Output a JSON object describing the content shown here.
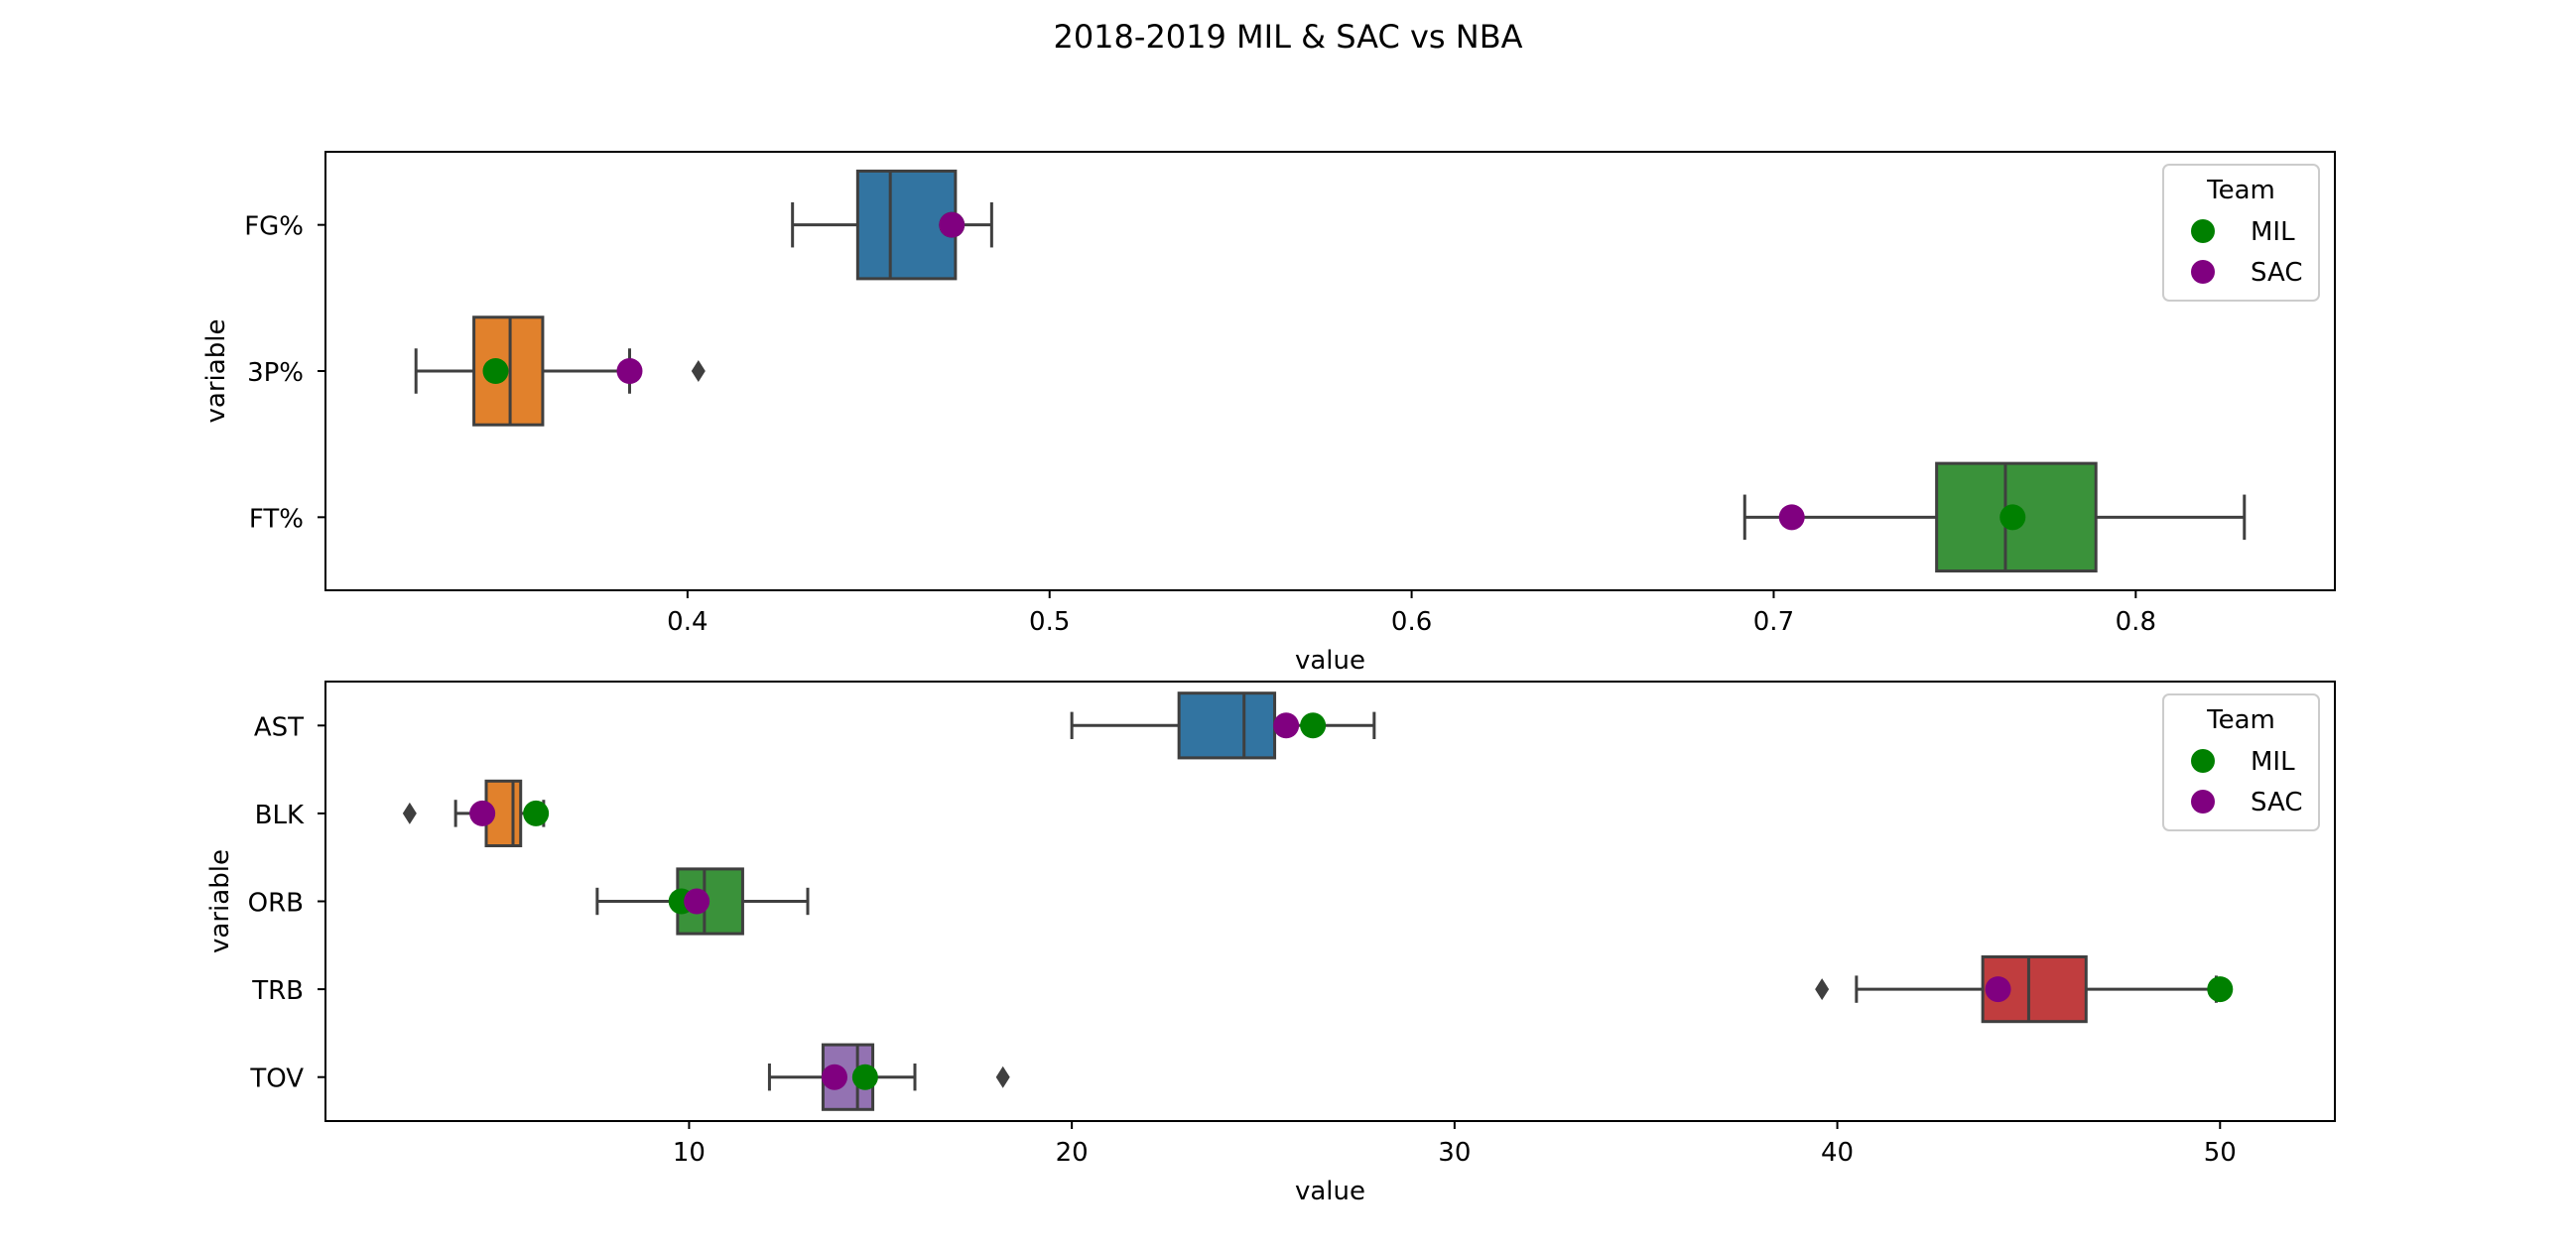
{
  "title": "2018-2019 MIL & SAC vs NBA",
  "colors": {
    "MIL": "#008000",
    "SAC": "#800080",
    "box_blue": "#3274a1",
    "box_orange": "#e1812c",
    "box_green": "#3a923a",
    "box_red": "#c03d3e",
    "box_purple": "#9372b2",
    "box_edge": "#3f3f3f"
  },
  "legend": {
    "title": "Team",
    "entries": [
      "MIL",
      "SAC"
    ]
  },
  "chart_data": [
    {
      "type": "box",
      "xlabel": "value",
      "ylabel": "variable",
      "xlim": [
        0.3,
        0.855
      ],
      "xticks": [
        0.4,
        0.5,
        0.6,
        0.7,
        0.8
      ],
      "xtick_labels": [
        "0.4",
        "0.5",
        "0.6",
        "0.7",
        "0.8"
      ],
      "legend_position": "top-right",
      "categories": [
        "FG%",
        "3P%",
        "FT%"
      ],
      "boxes": [
        {
          "category": "FG%",
          "color": "box_blue",
          "whisker_low": 0.429,
          "q1": 0.447,
          "median": 0.456,
          "q3": 0.474,
          "whisker_high": 0.484,
          "outliers": []
        },
        {
          "category": "3P%",
          "color": "box_orange",
          "whisker_low": 0.325,
          "q1": 0.341,
          "median": 0.351,
          "q3": 0.36,
          "whisker_high": 0.384,
          "outliers": [
            0.403
          ]
        },
        {
          "category": "FT%",
          "color": "box_green",
          "whisker_low": 0.692,
          "q1": 0.745,
          "median": 0.764,
          "q3": 0.789,
          "whisker_high": 0.83,
          "outliers": []
        }
      ],
      "series": [
        {
          "name": "MIL",
          "values": [
            0.473,
            0.347,
            0.766
          ]
        },
        {
          "name": "SAC",
          "values": [
            0.473,
            0.384,
            0.705
          ]
        }
      ]
    },
    {
      "type": "box",
      "xlabel": "value",
      "ylabel": "variable",
      "xlim": [
        0.5,
        53
      ],
      "xticks": [
        10,
        20,
        30,
        40,
        50
      ],
      "xtick_labels": [
        "10",
        "20",
        "30",
        "40",
        "50"
      ],
      "legend_position": "top-right",
      "categories": [
        "AST",
        "BLK",
        "ORB",
        "TRB",
        "TOV"
      ],
      "boxes": [
        {
          "category": "AST",
          "color": "box_blue",
          "whisker_low": 20.0,
          "q1": 22.8,
          "median": 24.5,
          "q3": 25.3,
          "whisker_high": 27.9,
          "outliers": []
        },
        {
          "category": "BLK",
          "color": "box_orange",
          "whisker_low": 3.9,
          "q1": 4.7,
          "median": 5.4,
          "q3": 5.6,
          "whisker_high": 6.2,
          "outliers": [
            2.7
          ]
        },
        {
          "category": "ORB",
          "color": "box_green",
          "whisker_low": 7.6,
          "q1": 9.7,
          "median": 10.4,
          "q3": 11.4,
          "whisker_high": 13.1,
          "outliers": []
        },
        {
          "category": "TRB",
          "color": "box_red",
          "whisker_low": 40.5,
          "q1": 43.8,
          "median": 45.0,
          "q3": 46.5,
          "whisker_high": 49.9,
          "outliers": [
            39.6
          ]
        },
        {
          "category": "TOV",
          "color": "box_purple",
          "whisker_low": 12.1,
          "q1": 13.5,
          "median": 14.4,
          "q3": 14.8,
          "whisker_high": 15.9,
          "outliers": [
            18.2
          ]
        }
      ],
      "series": [
        {
          "name": "MIL",
          "values": [
            26.3,
            6.0,
            9.8,
            50.0,
            14.6
          ]
        },
        {
          "name": "SAC",
          "values": [
            25.6,
            4.6,
            10.2,
            44.2,
            13.8
          ]
        }
      ]
    }
  ]
}
